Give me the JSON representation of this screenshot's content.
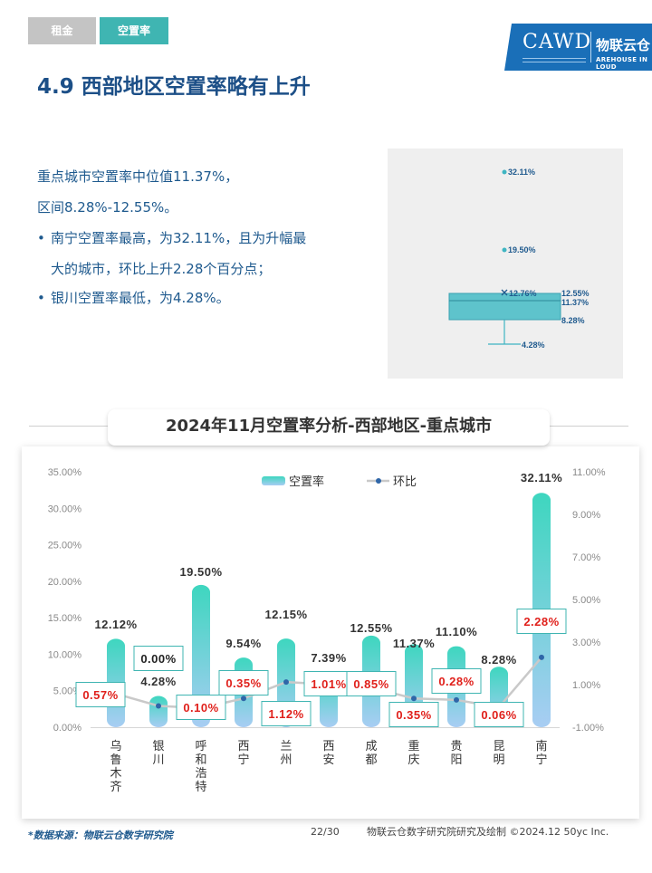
{
  "tabs": [
    {
      "label": "租金",
      "active": false
    },
    {
      "label": "空置率",
      "active": true
    }
  ],
  "logo": {
    "text": "CAWD",
    "brand_cn": "物联云仓",
    "brand_en": "AREHOUSE IN LOUD",
    "color": "#1a6fb8"
  },
  "title": "4.9 西部地区空置率略有上升",
  "summary": {
    "line1": "重点城市空置率中位值11.37%，",
    "line2": "区间8.28%-12.55%。",
    "bullets": [
      {
        "line1": "南宁空置率最高，为32.11%，且为升幅最",
        "line2": "大的城市，环比上升2.28个百分点；"
      },
      {
        "line1": "银川空置率最低，为4.28%。",
        "line2": ""
      }
    ]
  },
  "boxplot": {
    "outliers": [
      "32.11%",
      "19.50%"
    ],
    "mean_label": "12.76%",
    "q3_label": "12.55%",
    "median_label": "11.37%",
    "q1_label": "8.28%",
    "min_label": "4.28%",
    "values": {
      "outliers": [
        32.11,
        19.5
      ],
      "mean": 12.76,
      "q3": 12.55,
      "median": 11.37,
      "q1": 8.28,
      "min": 4.28
    },
    "color": "#3fb5c2"
  },
  "chart_title": "2024年11月空置率分析-西部地区-重点城市",
  "chart_data": {
    "type": "bar",
    "categories": [
      "乌鲁木齐",
      "银川",
      "呼和浩特",
      "西宁",
      "兰州",
      "西安",
      "成都",
      "重庆",
      "贵阳",
      "昆明",
      "南宁"
    ],
    "series": [
      {
        "name": "空置率",
        "type": "bar",
        "axis": "left",
        "values": [
          12.12,
          4.28,
          19.5,
          9.54,
          12.15,
          7.39,
          12.55,
          11.37,
          11.1,
          8.28,
          32.11
        ],
        "labels": [
          "12.12%",
          "4.28%",
          "19.50%",
          "9.54%",
          "12.15%",
          "7.39%",
          "12.55%",
          "11.37%",
          "11.10%",
          "8.28%",
          "32.11%"
        ]
      },
      {
        "name": "环比",
        "type": "line",
        "axis": "right",
        "values": [
          0.57,
          0.0,
          -0.1,
          0.35,
          1.12,
          1.01,
          0.85,
          0.35,
          0.28,
          -0.06,
          2.28
        ],
        "labels": [
          "0.57%",
          "0.00%",
          "0.10%",
          "0.35%",
          "1.12%",
          "1.01%",
          "0.85%",
          "0.35%",
          "0.28%",
          "0.06%",
          "2.28%"
        ]
      }
    ],
    "y_left": {
      "ticks": [
        "0.00%",
        "5.00%",
        "10.00%",
        "15.00%",
        "20.00%",
        "25.00%",
        "30.00%",
        "35.00%"
      ],
      "lim": [
        0,
        35
      ]
    },
    "y_right": {
      "ticks": [
        "-1.00%",
        "1.00%",
        "3.00%",
        "5.00%",
        "7.00%",
        "9.00%",
        "11.00%"
      ],
      "lim": [
        -1,
        11
      ]
    },
    "legend": {
      "bar": "空置率",
      "line": "环比",
      "position": "top"
    },
    "colors": {
      "bar_top": "#3ed6bf",
      "bar_bottom": "#a8cdf3",
      "line": "#c9c9c9",
      "point": "#2f66a8",
      "label_red": "#e0201b",
      "box_border": "#3fb5b2"
    },
    "grid": false
  },
  "footer": {
    "source": "*数据来源：物联云仓数字研究院",
    "page": "22/30",
    "credit": "物联云仓数字研究院研究及绘制  ©2024.12 50yc Inc."
  }
}
